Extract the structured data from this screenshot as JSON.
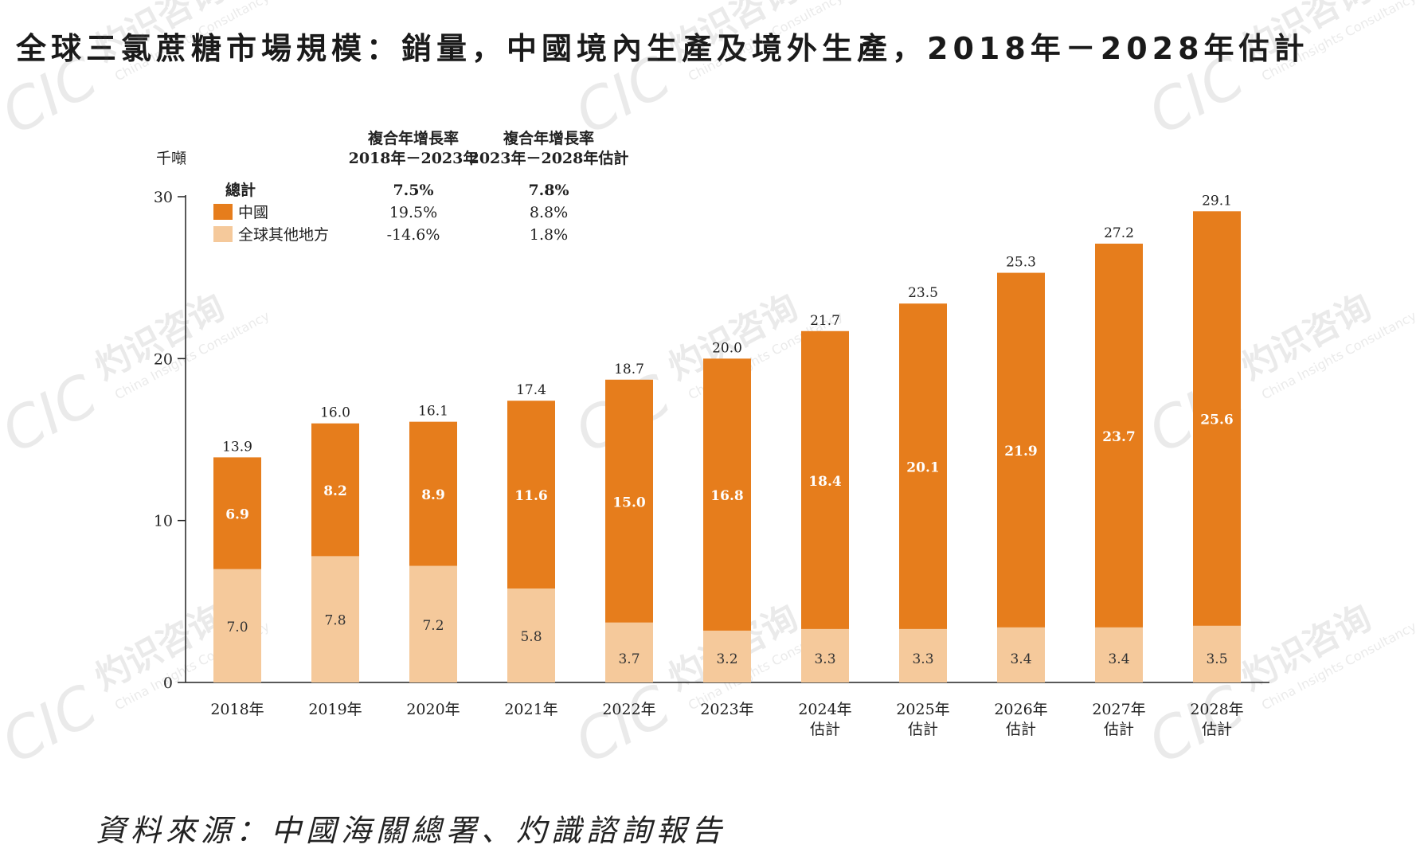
{
  "title": "全球三氯蔗糖市場規模：銷量，中國境內生產及境外生產，2018年－2028年估計",
  "source": "資料來源：中國海關總署、灼識諮詢報告",
  "watermark": {
    "mark": "CIC",
    "cn": "灼识咨询",
    "en": "China Insights Consultancy"
  },
  "cagr": {
    "headers": [
      {
        "line1": "複合年增長率",
        "line2": "2018年－2023年"
      },
      {
        "line1": "複合年增長率",
        "line2": "2023年－2028年估計"
      }
    ],
    "rows": [
      {
        "label": "總計",
        "values": [
          "7.5%",
          "7.8%"
        ]
      },
      {
        "label": "中國",
        "values": [
          "19.5%",
          "8.8%"
        ]
      },
      {
        "label": "全球其他地方",
        "values": [
          "-14.6%",
          "1.8%"
        ]
      }
    ]
  },
  "chart_data": {
    "type": "bar",
    "stacked": true,
    "ylabel": "千噸",
    "ylim": [
      0,
      30
    ],
    "yticks": [
      0,
      10,
      20,
      30
    ],
    "categories": [
      [
        "2018年"
      ],
      [
        "2019年"
      ],
      [
        "2020年"
      ],
      [
        "2021年"
      ],
      [
        "2022年"
      ],
      [
        "2023年"
      ],
      [
        "2024年",
        "估計"
      ],
      [
        "2025年",
        "估計"
      ],
      [
        "2026年",
        "估計"
      ],
      [
        "2027年",
        "估計"
      ],
      [
        "2028年",
        "估計"
      ]
    ],
    "series": [
      {
        "name": "全球其他地方",
        "color": "#f5c99b",
        "values": [
          7.0,
          7.8,
          7.2,
          5.8,
          3.7,
          3.2,
          3.3,
          3.3,
          3.4,
          3.4,
          3.5
        ]
      },
      {
        "name": "中國",
        "color": "#e67d1c",
        "values": [
          6.9,
          8.2,
          8.9,
          11.6,
          15.0,
          16.8,
          18.4,
          20.1,
          21.9,
          23.7,
          25.6
        ]
      }
    ],
    "totals": [
      13.9,
      16.0,
      16.1,
      17.4,
      18.7,
      20.0,
      21.7,
      23.5,
      25.3,
      27.2,
      29.1
    ],
    "legend_position": "top-left"
  }
}
